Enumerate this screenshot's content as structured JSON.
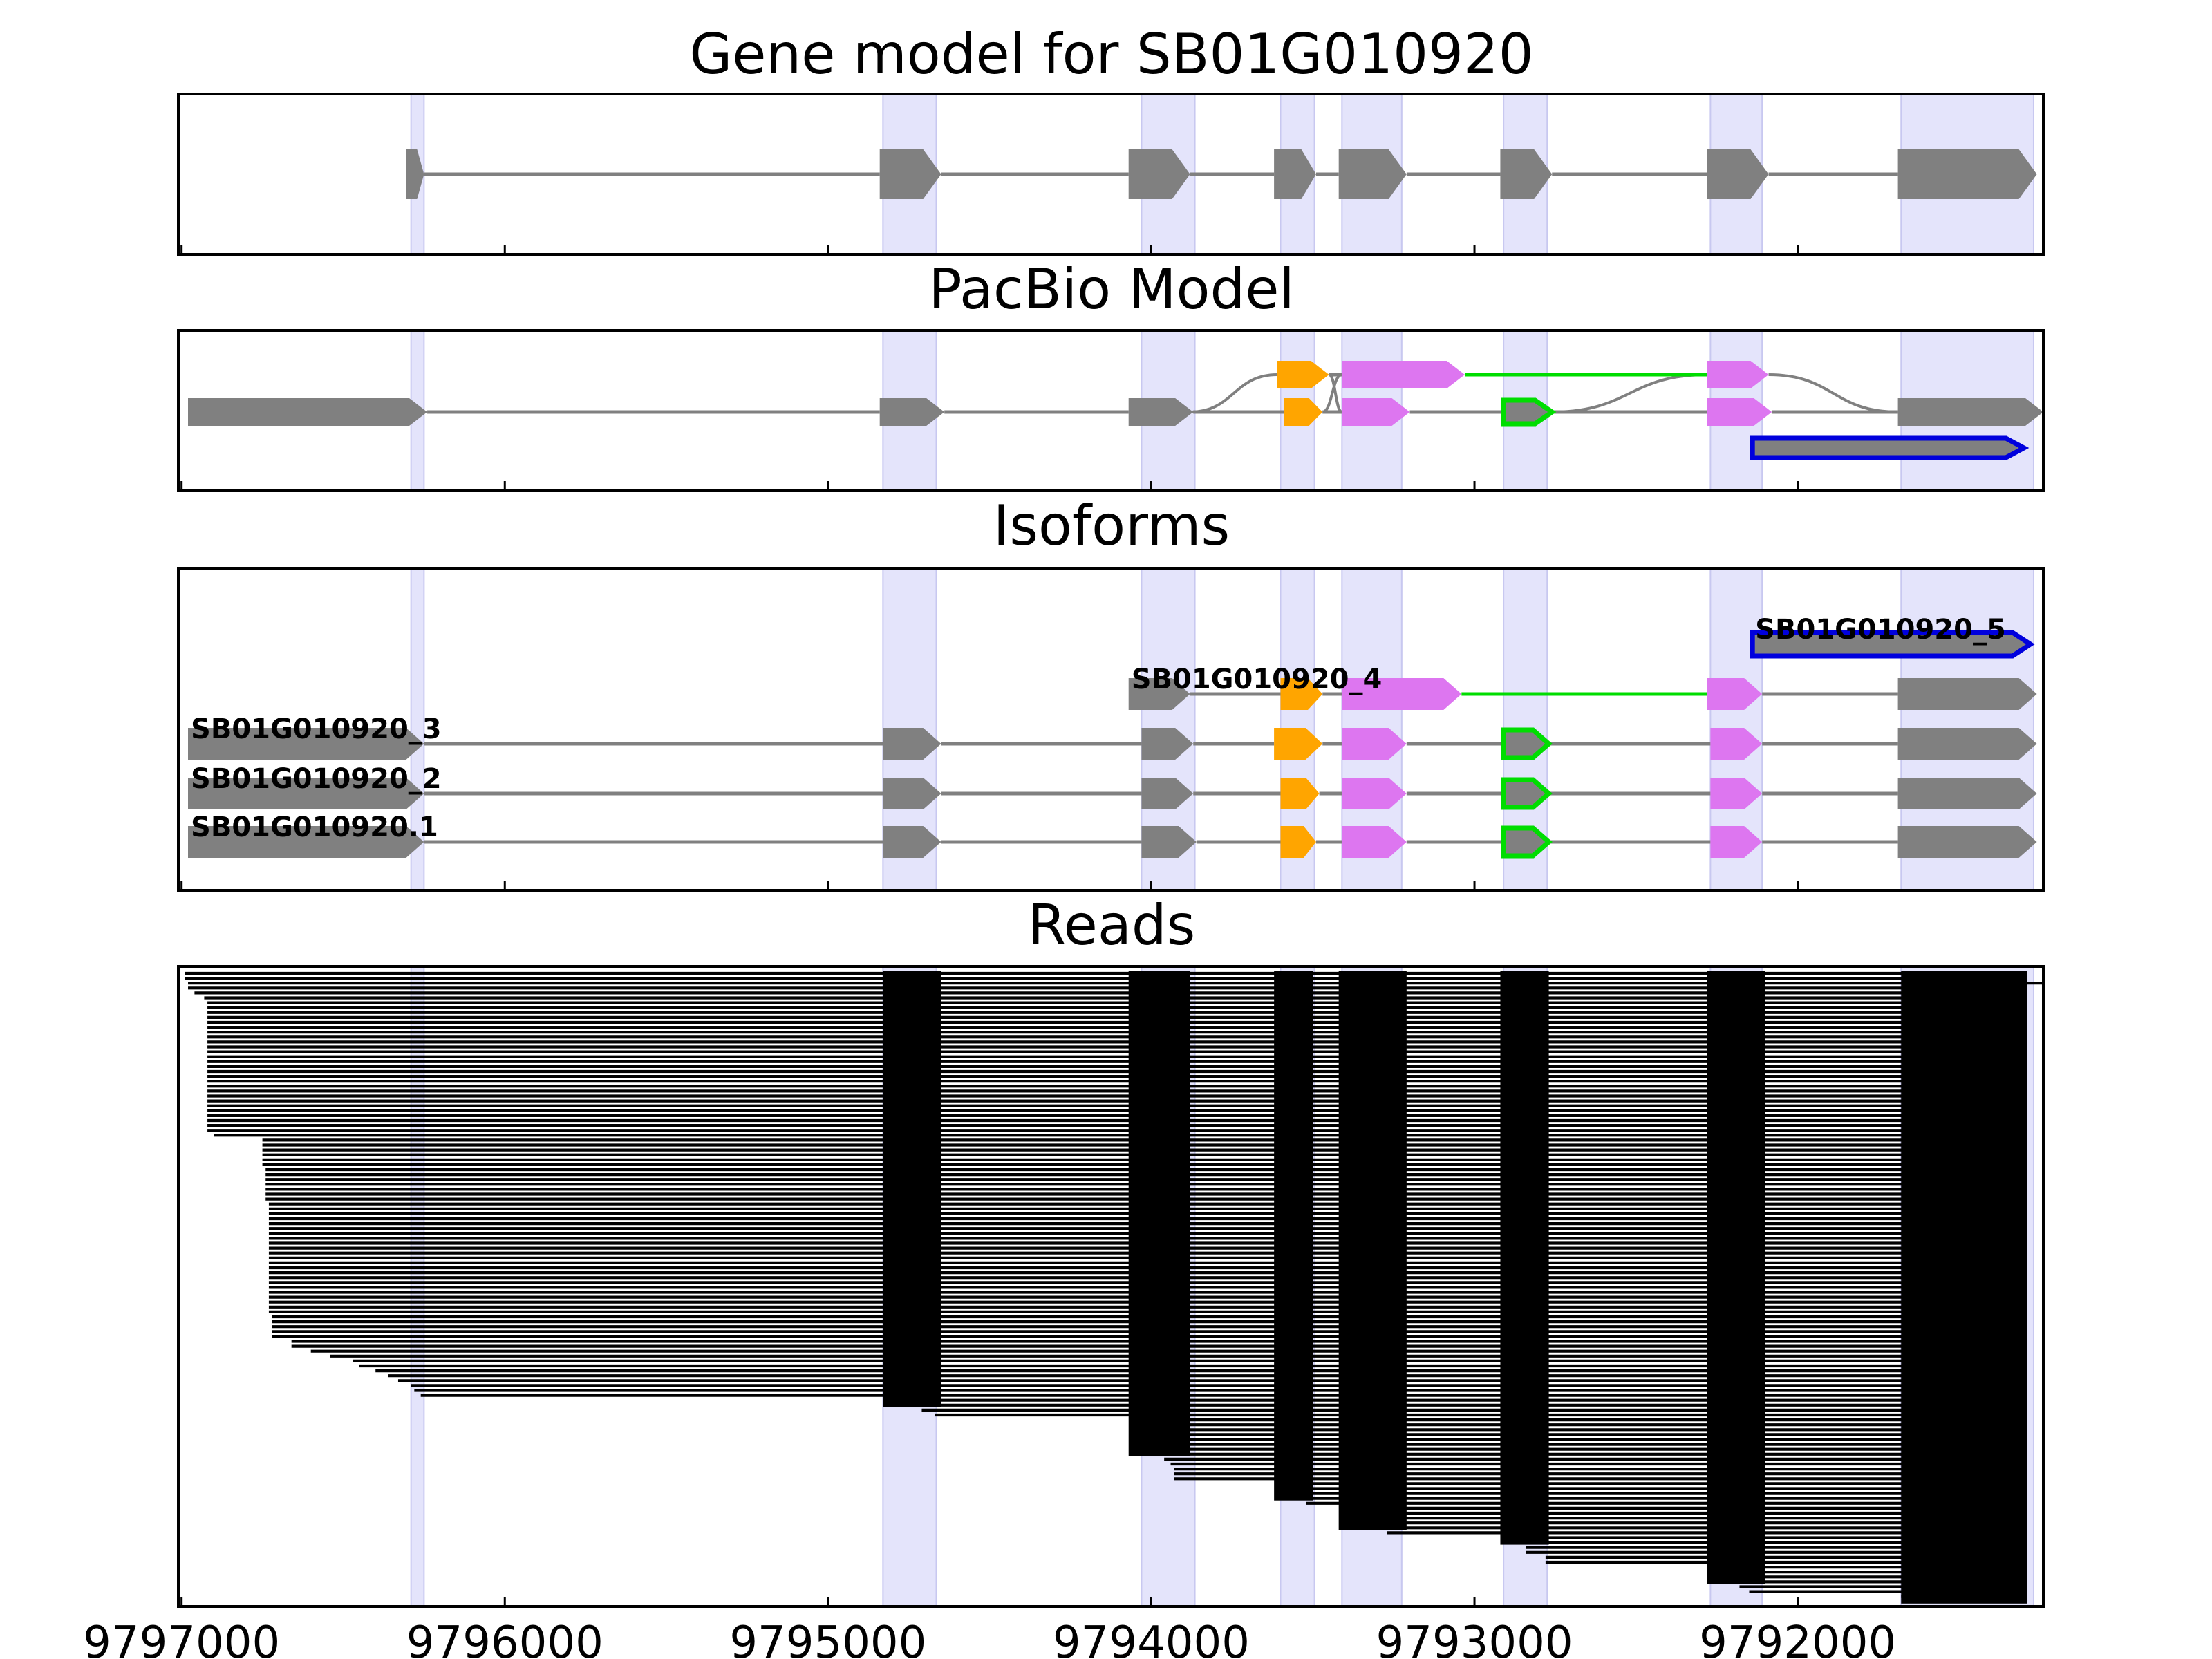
{
  "chart_data": {
    "type": "gene_structure",
    "x_axis": {
      "reversed": true,
      "range": [
        9797010,
        9791240
      ],
      "ticks": [
        "9797000",
        "9796000",
        "9795000",
        "9794000",
        "9793000",
        "9792000"
      ]
    },
    "exon_regions": [
      [
        9796290,
        9796250
      ],
      [
        9794830,
        9794665
      ],
      [
        9794030,
        9793865
      ],
      [
        9793600,
        9793495
      ],
      [
        9793410,
        9793225
      ],
      [
        9792910,
        9792775
      ],
      [
        9792270,
        9792110
      ],
      [
        9791680,
        9791270
      ]
    ],
    "colors": {
      "region": "#e4e4fb",
      "region_edge": "#c8c8f0",
      "gene": "#808080",
      "orange": "#ffa500",
      "violet": "#dd76f0",
      "green": "#00dd00",
      "blue": "#0000dd",
      "intron": "#808080",
      "read": "#000000"
    },
    "panels": [
      {
        "title": "Gene model for SB01G010920",
        "rows": [
          {
            "name": "",
            "exons": [
              {
                "s": 9796305,
                "e": 9796250
              },
              {
                "s": 9794840,
                "e": 9794650
              },
              {
                "s": 9794070,
                "e": 9793880
              },
              {
                "s": 9793620,
                "e": 9793490
              },
              {
                "s": 9793420,
                "e": 9793210
              },
              {
                "s": 9792920,
                "e": 9792760
              },
              {
                "s": 9792280,
                "e": 9792090
              },
              {
                "s": 9791690,
                "e": 9791260
              }
            ]
          }
        ]
      },
      {
        "title": "PacBio Model",
        "rows": [
          {
            "name": "",
            "exons": [
              {
                "s": 9793610,
                "e": 9793450,
                "c": "orange"
              },
              {
                "s": 9793410,
                "e": 9793030,
                "c": "violet"
              },
              {
                "s": 9792280,
                "e": 9792090,
                "c": "violet"
              }
            ],
            "intron_colors": [
              "gray",
              "green"
            ]
          },
          {
            "name": "",
            "exons": [
              {
                "s": 9796980,
                "e": 9796240
              },
              {
                "s": 9794840,
                "e": 9794640
              },
              {
                "s": 9794070,
                "e": 9793870
              },
              {
                "s": 9793590,
                "e": 9793470,
                "c": "orange"
              },
              {
                "s": 9793410,
                "e": 9793200,
                "c": "violet"
              },
              {
                "s": 9792910,
                "e": 9792760,
                "c": "green",
                "outline": true
              },
              {
                "s": 9792280,
                "e": 9792080,
                "c": "violet"
              },
              {
                "s": 9791690,
                "e": 9791240
              }
            ]
          },
          {
            "name": "",
            "exons": [
              {
                "s": 9792140,
                "e": 9791300,
                "outline_color": "blue"
              }
            ]
          }
        ]
      },
      {
        "title": "Isoforms",
        "rows": [
          {
            "name": "SB01G010920_5",
            "exons": [
              {
                "s": 9792140,
                "e": 9791280,
                "outline_color": "blue"
              }
            ]
          },
          {
            "name": "SB01G010920_4",
            "exons": [
              {
                "s": 9794070,
                "e": 9793880
              },
              {
                "s": 9793600,
                "e": 9793470,
                "c": "orange"
              },
              {
                "s": 9793410,
                "e": 9793040,
                "c": "violet"
              },
              {
                "s": 9792280,
                "e": 9792110,
                "c": "violet"
              },
              {
                "s": 9791690,
                "e": 9791260
              }
            ],
            "intron_colors": [
              "gray",
              "gray",
              "green",
              "gray"
            ]
          },
          {
            "name": "SB01G010920_3",
            "exons": [
              {
                "s": 9796980,
                "e": 9796250
              },
              {
                "s": 9794830,
                "e": 9794650
              },
              {
                "s": 9794030,
                "e": 9793870
              },
              {
                "s": 9793620,
                "e": 9793470,
                "c": "orange"
              },
              {
                "s": 9793410,
                "e": 9793210,
                "c": "violet"
              },
              {
                "s": 9792910,
                "e": 9792770,
                "c": "green",
                "outline": true
              },
              {
                "s": 9792270,
                "e": 9792110,
                "c": "violet"
              },
              {
                "s": 9791690,
                "e": 9791260
              }
            ]
          },
          {
            "name": "SB01G010920_2",
            "exons": [
              {
                "s": 9796980,
                "e": 9796250
              },
              {
                "s": 9794830,
                "e": 9794650
              },
              {
                "s": 9794030,
                "e": 9793870
              },
              {
                "s": 9793600,
                "e": 9793480,
                "c": "orange"
              },
              {
                "s": 9793410,
                "e": 9793210,
                "c": "violet"
              },
              {
                "s": 9792910,
                "e": 9792770,
                "c": "green",
                "outline": true
              },
              {
                "s": 9792270,
                "e": 9792110,
                "c": "violet"
              },
              {
                "s": 9791690,
                "e": 9791260
              }
            ]
          },
          {
            "name": "SB01G010920.1",
            "exons": [
              {
                "s": 9796980,
                "e": 9796250
              },
              {
                "s": 9794830,
                "e": 9794650
              },
              {
                "s": 9794030,
                "e": 9793860
              },
              {
                "s": 9793600,
                "e": 9793490,
                "c": "orange"
              },
              {
                "s": 9793410,
                "e": 9793210,
                "c": "violet"
              },
              {
                "s": 9792910,
                "e": 9792770,
                "c": "green",
                "outline": true
              },
              {
                "s": 9792270,
                "e": 9792110,
                "c": "violet"
              },
              {
                "s": 9791690,
                "e": 9791260
              }
            ]
          }
        ]
      },
      {
        "title": "Reads",
        "read_count": 129,
        "read_starts": [
          9796990,
          9796990,
          9796980,
          9796980,
          9796960,
          9796930,
          9796920,
          9796920,
          9796920,
          9796920,
          9796920,
          9796920,
          9796920,
          9796920,
          9796920,
          9796920,
          9796920,
          9796920,
          9796920,
          9796920,
          9796920,
          9796920,
          9796920,
          9796920,
          9796920,
          9796920,
          9796920,
          9796920,
          9796920,
          9796920,
          9796920,
          9796920,
          9796920,
          9796900,
          9796750,
          9796750,
          9796750,
          9796750,
          9796750,
          9796750,
          9796740,
          9796740,
          9796740,
          9796740,
          9796740,
          9796740,
          9796740,
          9796730,
          9796730,
          9796730,
          9796730,
          9796730,
          9796730,
          9796730,
          9796730,
          9796730,
          9796730,
          9796730,
          9796730,
          9796730,
          9796730,
          9796730,
          9796730,
          9796730,
          9796730,
          9796730,
          9796730,
          9796730,
          9796730,
          9796730,
          9796720,
          9796720,
          9796720,
          9796720,
          9796720,
          9796660,
          9796660,
          9796600,
          9796540,
          9796470,
          9796450,
          9796400,
          9796360,
          9796330,
          9796290,
          9796280,
          9796260,
          9794830,
          9794830,
          9794710,
          9794670,
          9794030,
          9794030,
          9794030,
          9794030,
          9794030,
          9794020,
          9794000,
          9793980,
          9793960,
          9793940,
          9793930,
          9793930,
          9793930,
          9793600,
          9793600,
          9793580,
          9793580,
          9793520,
          9793410,
          9793410,
          9793410,
          9793400,
          9793400,
          9793270,
          9792910,
          9792910,
          9792840,
          9792840,
          9792780,
          9792780,
          9792220,
          9792220,
          9792210,
          9792200,
          9792180,
          9792150,
          9791680,
          9791670
        ],
        "read_ends": [
          9791360,
          9791360,
          9791240,
          9791340,
          9791340,
          9791340,
          9791340,
          9791340,
          9791340,
          9791340,
          9791340,
          9791340,
          9791340,
          9791340,
          9791340,
          9791340,
          9791340,
          9791340,
          9791340,
          9791340,
          9791340,
          9791340,
          9791340,
          9791340,
          9791340,
          9791320,
          9791340,
          9791330,
          9791340,
          9791330,
          9791330,
          9791330,
          9791330,
          9791400,
          9791340,
          9791330,
          9791330,
          9791300,
          9791300,
          9791300,
          9791300,
          9791300,
          9791300,
          9791300,
          9791400,
          9791400,
          9791400,
          9791400,
          9791400,
          9791340,
          9791390,
          9791320,
          9791320,
          9791330,
          9791330,
          9791330,
          9791330,
          9791330,
          9791330,
          9791330,
          9791330,
          9791330,
          9791330,
          9791330,
          9791330,
          9791330,
          9791330,
          9791330,
          9791330,
          9791330,
          9791340,
          9791340,
          9791340,
          9791400,
          9791340,
          9791340,
          9791320,
          9791300,
          9791320,
          9791350,
          9791340,
          9791350,
          9791350,
          9791340,
          9791340,
          9791340,
          9791320,
          9791330,
          9791340,
          9791340,
          9791330,
          9791330,
          9791340,
          9791330,
          9791330,
          9791300,
          9791330,
          9791330,
          9791330,
          9791330,
          9791330,
          9791330,
          9791360,
          9791360,
          9791340,
          9791330,
          9791360,
          9791340,
          9791330,
          9791360,
          9791330,
          9791340,
          9791340,
          9791330,
          9791320,
          9791330,
          9791330,
          9791330,
          9791330,
          9791330,
          9791330,
          9791340,
          9791320,
          9791360,
          9791320,
          9791330,
          9791340,
          9791340,
          9791330
        ],
        "read_exons": [
          [
            9796270,
            9796270
          ],
          [
            9794830,
            9794650
          ],
          [
            9794070,
            9793880
          ],
          [
            9793620,
            9793500
          ],
          [
            9793420,
            9793210
          ],
          [
            9792920,
            9792770
          ],
          [
            9792280,
            9792100
          ],
          [
            9791680,
            9791290
          ]
        ]
      }
    ]
  }
}
